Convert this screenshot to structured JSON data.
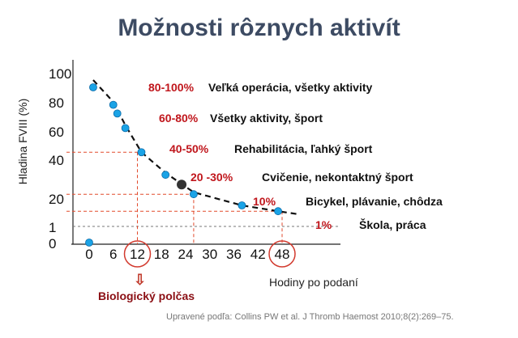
{
  "title": "Možnosti rôznych aktivít",
  "source": "Upravené podľa: Collins PW et al. J Thromb Haemost 2010;8(2):269–75.",
  "biological_label": "Biologický polčas",
  "colors": {
    "title": "#3d4b63",
    "point": "#1aa3e6",
    "point_highlight": "#333333",
    "range": "#c0161c",
    "guide": "#e24a2c",
    "circle": "#d23a2e"
  },
  "chart_data": {
    "type": "scatter",
    "xlabel": "Hodiny po podaní",
    "ylabel": "Hladina FVIII (%)",
    "x_ticks": [
      "0",
      "6",
      "12",
      "18",
      "24",
      "30",
      "36",
      "42",
      "48"
    ],
    "y_ticks": [
      "100",
      "80",
      "60",
      "40",
      "20",
      "1",
      "0"
    ],
    "circled_x_ticks": [
      "12",
      "48"
    ],
    "points": [
      {
        "x": 1,
        "y": 90
      },
      {
        "x": 6,
        "y": 78
      },
      {
        "x": 7,
        "y": 72
      },
      {
        "x": 9,
        "y": 62
      },
      {
        "x": 13,
        "y": 45
      },
      {
        "x": 19,
        "y": 32
      },
      {
        "x": 23,
        "y": 27
      },
      {
        "x": 26,
        "y": 22
      },
      {
        "x": 38,
        "y": 15
      },
      {
        "x": 47,
        "y": 11
      },
      {
        "x": 0,
        "y": 0
      }
    ],
    "highlight_point_index": 6,
    "guides": [
      {
        "x": 12,
        "y": 45
      },
      {
        "x": 26,
        "y": 22
      },
      {
        "x": 48,
        "y": 11
      }
    ],
    "annotations": [
      {
        "range": "80-100%",
        "text": "Veľká operácia, všetky aktivity"
      },
      {
        "range": "60-80%",
        "text": "Všetky aktivity, šport"
      },
      {
        "range": "40-50%",
        "text": "Rehabilitácia, ľahký šport"
      },
      {
        "range": "20 -30%",
        "text": "Cvičenie,  nekontaktný šport"
      },
      {
        "range": "10%",
        "text": "Bicykel, plávanie, chôdza"
      },
      {
        "range": "1%",
        "text": "Škola, práca"
      }
    ]
  }
}
